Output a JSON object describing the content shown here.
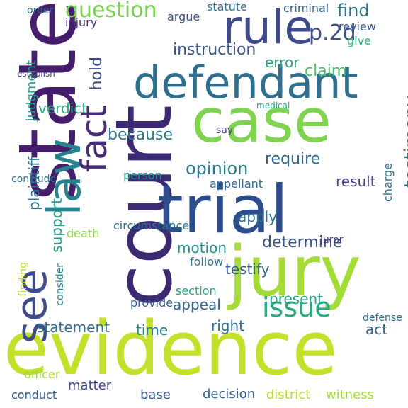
{
  "word_cloud": {
    "words": [
      {
        "text": "evidence",
        "color": "#c3e02b"
      },
      {
        "text": "court",
        "color": "#3b2a71"
      },
      {
        "text": "state",
        "color": "#451d6a"
      },
      {
        "text": "trial",
        "color": "#2b4d8c"
      },
      {
        "text": "jury",
        "color": "#a5db36"
      },
      {
        "text": "case",
        "color": "#7ed34f"
      },
      {
        "text": "defendant",
        "color": "#2e6e8e"
      },
      {
        "text": "rule",
        "color": "#3e4a89"
      },
      {
        "text": "law",
        "color": "#26828e"
      },
      {
        "text": "fact",
        "color": "#472c7a"
      },
      {
        "text": "see",
        "color": "#3e4c8a"
      },
      {
        "text": "issue",
        "color": "#28aa81"
      },
      {
        "text": "question",
        "color": "#7ad151"
      },
      {
        "text": "testimony",
        "color": "#24868e"
      },
      {
        "text": "p.2d",
        "color": "#3b528b"
      },
      {
        "text": "instruction",
        "color": "#3a548c"
      },
      {
        "text": "find",
        "color": "#2c728e"
      },
      {
        "text": "hold",
        "color": "#3e4989"
      },
      {
        "text": "opinion",
        "color": "#287d8e"
      },
      {
        "text": "claim",
        "color": "#4cc26c"
      },
      {
        "text": "determine",
        "color": "#3a538b"
      },
      {
        "text": "because",
        "color": "#2a788e"
      },
      {
        "text": "require",
        "color": "#31678e"
      },
      {
        "text": "verdict",
        "color": "#26ad81"
      },
      {
        "text": "statement",
        "color": "#2c718e"
      },
      {
        "text": "appeal",
        "color": "#32658e"
      },
      {
        "text": "error",
        "color": "#2ea27f"
      },
      {
        "text": "right",
        "color": "#2d708e"
      },
      {
        "text": "present",
        "color": "#20a386"
      },
      {
        "text": "motion",
        "color": "#21918c"
      },
      {
        "text": "time",
        "color": "#25848e"
      },
      {
        "text": "testify",
        "color": "#34618d"
      },
      {
        "text": "apply",
        "color": "#2c738e"
      },
      {
        "text": "result",
        "color": "#3f4788"
      },
      {
        "text": "decision",
        "color": "#355f8d"
      },
      {
        "text": "district",
        "color": "#b5de2b"
      },
      {
        "text": "witness",
        "color": "#a8db34"
      },
      {
        "text": "matter",
        "color": "#3e4989"
      },
      {
        "text": "base",
        "color": "#375a8c"
      },
      {
        "text": "conduct",
        "color": "#365c8d"
      },
      {
        "text": "officer",
        "color": "#a2da37"
      },
      {
        "text": "act",
        "color": "#33638d"
      },
      {
        "text": "support",
        "color": "#1f9e89"
      },
      {
        "text": "plaintiff",
        "color": "#2b748e"
      },
      {
        "text": "judgment",
        "color": "#1fa088"
      },
      {
        "text": "injury",
        "color": "#472a7a"
      },
      {
        "text": "argue",
        "color": "#3d4d8a"
      },
      {
        "text": "statute",
        "color": "#2f6b8e"
      },
      {
        "text": "criminal",
        "color": "#32648e"
      },
      {
        "text": "order",
        "color": "#2e6d8e"
      },
      {
        "text": "give",
        "color": "#2eb37c"
      },
      {
        "text": "review",
        "color": "#3b528b"
      },
      {
        "text": "charge",
        "color": "#2d708e"
      },
      {
        "text": "provide",
        "color": "#38598c"
      },
      {
        "text": "section",
        "color": "#22a884"
      },
      {
        "text": "follow",
        "color": "#2c738e"
      },
      {
        "text": "person",
        "color": "#1f968b"
      },
      {
        "text": "death",
        "color": "#8fd744"
      },
      {
        "text": "circumstance",
        "color": "#2c728e"
      },
      {
        "text": "appellant",
        "color": "#31688e"
      },
      {
        "text": "finding",
        "color": "#bddf26"
      },
      {
        "text": "consider",
        "color": "#23898e"
      },
      {
        "text": "juror",
        "color": "#46327e"
      },
      {
        "text": "defense",
        "color": "#2c738e"
      },
      {
        "text": "say",
        "color": "#46327e"
      },
      {
        "text": "conclude",
        "color": "#2a778e"
      },
      {
        "text": "establish",
        "color": "#443983"
      },
      {
        "text": "medical",
        "color": "#21a685"
      }
    ]
  }
}
